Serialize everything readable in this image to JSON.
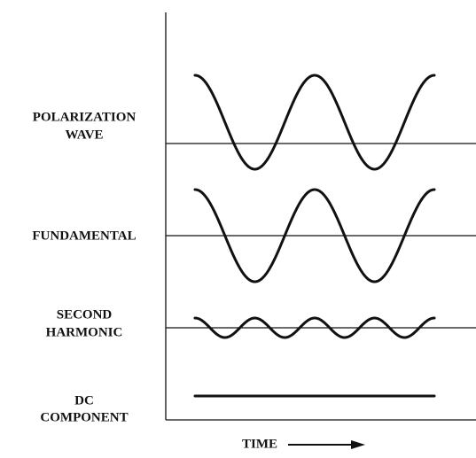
{
  "labels": [
    {
      "lines": [
        "POLARIZATION",
        "WAVE"
      ]
    },
    {
      "lines": [
        "FUNDAMENTAL"
      ]
    },
    {
      "lines": [
        "SECOND",
        "HARMONIC"
      ]
    },
    {
      "lines": [
        "DC",
        "COMPONENT"
      ]
    }
  ],
  "x_axis_label": "TIME"
}
